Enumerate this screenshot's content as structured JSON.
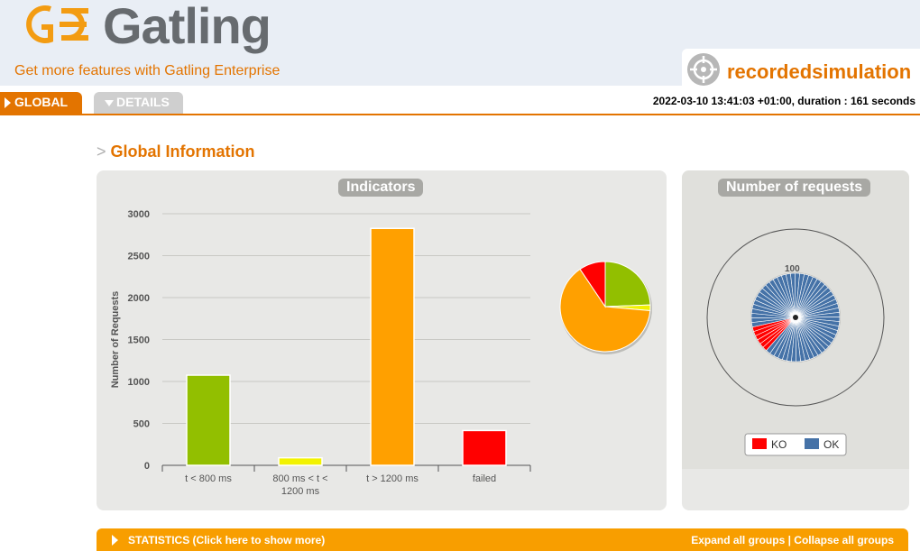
{
  "brand": {
    "name": "Gatling",
    "enterprise_link": "Get more features with Gatling Enterprise"
  },
  "simulation": {
    "name": "recordedsimulation"
  },
  "tabs": {
    "global": "GLOBAL",
    "details": "DETAILS"
  },
  "run_info": "2022-03-10 13:41:03 +01:00, duration : 161 seconds",
  "section_title": "Global Information",
  "section_marker": ">",
  "indicators_title": "Indicators",
  "requests_title": "Number of requests",
  "chart_data": [
    {
      "type": "bar",
      "ylabel": "Number of Requests",
      "categories": [
        "t < 800 ms",
        "800 ms < t < 1200 ms",
        "t > 1200 ms",
        "failed"
      ],
      "values": [
        1075,
        90,
        2825,
        415
      ],
      "colors": [
        "#92bf00",
        "#f2f200",
        "#ffa000",
        "#ff0000"
      ],
      "ylim": [
        0,
        3000
      ],
      "yticks": [
        0,
        500,
        1000,
        1500,
        2000,
        2500,
        3000
      ],
      "grid": true
    },
    {
      "type": "pie",
      "categories": [
        "t < 800 ms",
        "800 ms < t < 1200 ms",
        "t > 1200 ms",
        "failed"
      ],
      "values": [
        1075,
        90,
        2825,
        415
      ],
      "colors": [
        "#92bf00",
        "#f2f200",
        "#ffa000",
        "#ff0000"
      ]
    },
    {
      "type": "pie",
      "title": "Number of requests",
      "categories": [
        "KO",
        "OK"
      ],
      "values": [
        10,
        90
      ],
      "colors": [
        "#ff0000",
        "#4572a7"
      ],
      "radial_tick_label": "100",
      "legend_position": "bottom"
    }
  ],
  "legend": {
    "ko": "KO",
    "ok": "OK",
    "ko_color": "#ff0000",
    "ok_color": "#4572a7"
  },
  "statistics": {
    "label": "STATISTICS (Click here to show more)",
    "expand": "Expand all groups",
    "separator": "|",
    "collapse": "Collapse all groups"
  }
}
